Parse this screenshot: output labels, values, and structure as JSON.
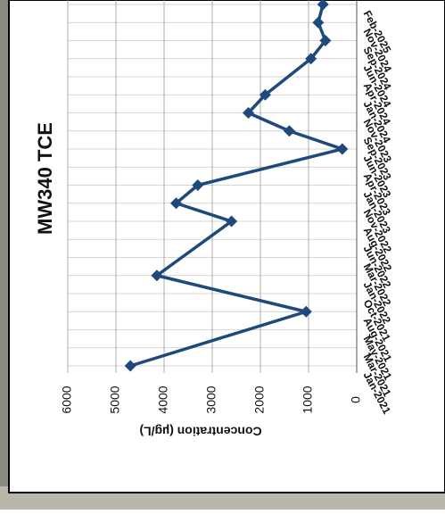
{
  "chart_data": {
    "type": "line",
    "title": "MW340 TCE",
    "y_label": "Concentration (µg/L)",
    "categories": [
      "Jan-2021",
      "Mar-2021",
      "May-2021",
      "Aug-2021",
      "Oct-2021",
      "Jan-2022",
      "Mar-2022",
      "Jun-2022",
      "Aug-2022",
      "Nov-2022",
      "Jan-2023",
      "Apr-2023",
      "Jun-2023",
      "Sep-2023",
      "Nov-2023",
      "Jan-2024",
      "Apr-2024",
      "Jun-2024",
      "Sep-2024",
      "Nov-2024",
      "Feb-2025"
    ],
    "series": [
      {
        "name": "TCE",
        "color": "#1f497d",
        "values": [
          4700,
          null,
          null,
          1050,
          null,
          4150,
          null,
          null,
          2600,
          3750,
          3300,
          null,
          300,
          1400,
          2250,
          1900,
          null,
          950,
          650,
          800,
          700
        ]
      }
    ],
    "ylim": [
      0,
      6000
    ],
    "yticks": [
      0,
      1000,
      2000,
      3000,
      4000,
      5000,
      6000
    ],
    "grid": true
  }
}
